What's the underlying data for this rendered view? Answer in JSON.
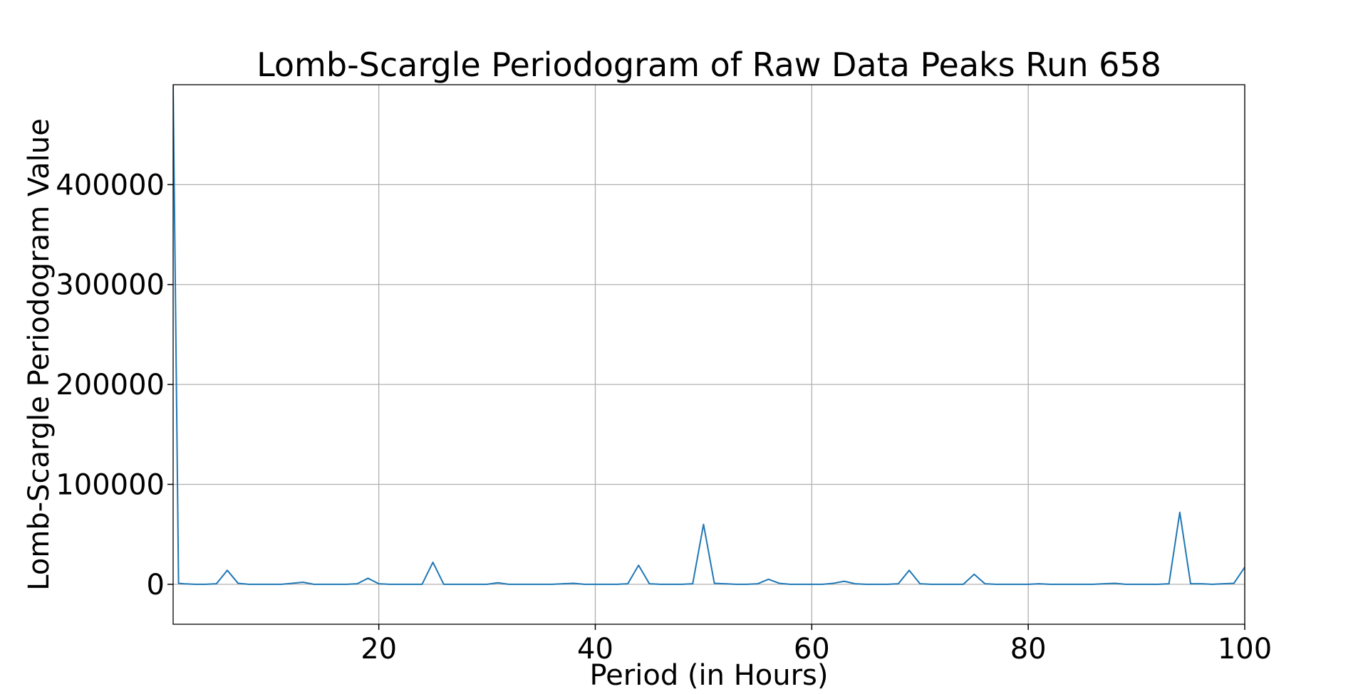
{
  "chart_data": {
    "type": "line",
    "title": "Lomb-Scargle Periodogram of Raw Data Peaks Run 658",
    "xlabel": "Period (in Hours)",
    "ylabel": "Lomb-Scargle Periodogram Value",
    "xlim": [
      1,
      100
    ],
    "ylim": [
      -40000,
      500000
    ],
    "xticks": [
      20,
      40,
      60,
      80,
      100
    ],
    "yticks": [
      0,
      100000,
      200000,
      300000,
      400000
    ],
    "grid": true,
    "series": [
      {
        "color": "#1f77b4",
        "x": [
          1,
          1.5,
          2,
          3,
          4,
          5,
          6,
          7,
          8,
          9,
          10,
          11,
          12,
          13,
          14,
          15,
          16,
          17,
          18,
          19,
          20,
          21,
          22,
          23,
          24,
          25,
          26,
          27,
          28,
          29,
          30,
          31,
          32,
          33,
          34,
          35,
          36,
          37,
          38,
          39,
          40,
          41,
          42,
          43,
          44,
          45,
          46,
          47,
          48,
          49,
          50,
          51,
          52,
          53,
          54,
          55,
          56,
          57,
          58,
          59,
          60,
          61,
          62,
          63,
          64,
          65,
          66,
          67,
          68,
          69,
          70,
          71,
          72,
          73,
          74,
          75,
          76,
          77,
          78,
          79,
          80,
          81,
          82,
          83,
          84,
          85,
          86,
          87,
          88,
          89,
          90,
          91,
          92,
          93,
          94,
          95,
          96,
          97,
          98,
          99,
          100
        ],
        "y": [
          500000,
          1000,
          500,
          0,
          0,
          500,
          14000,
          1000,
          0,
          0,
          0,
          0,
          1000,
          2000,
          0,
          0,
          0,
          0,
          500,
          6000,
          500,
          0,
          0,
          0,
          0,
          22000,
          0,
          0,
          0,
          0,
          0,
          1500,
          0,
          0,
          0,
          0,
          0,
          500,
          1000,
          0,
          0,
          0,
          0,
          500,
          19000,
          500,
          0,
          0,
          0,
          500,
          60000,
          1000,
          500,
          0,
          0,
          500,
          5000,
          1000,
          0,
          0,
          0,
          0,
          1000,
          3000,
          500,
          0,
          0,
          0,
          500,
          14000,
          500,
          0,
          0,
          0,
          0,
          10000,
          500,
          0,
          0,
          0,
          0,
          500,
          0,
          0,
          0,
          0,
          0,
          500,
          1000,
          0,
          0,
          0,
          0,
          500,
          72000,
          500,
          500,
          0,
          500,
          1000,
          17000
        ]
      }
    ]
  }
}
